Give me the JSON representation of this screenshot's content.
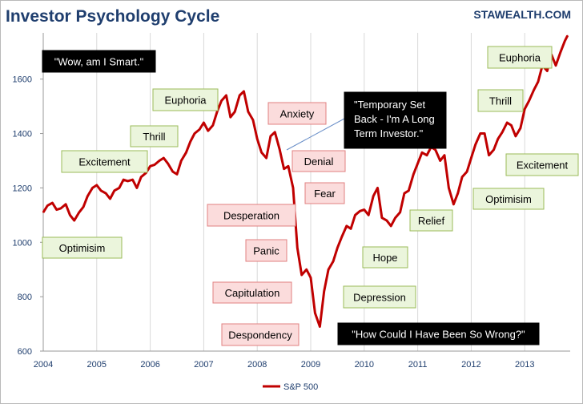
{
  "chart_data": {
    "type": "line",
    "title": "Investor Psychology Cycle",
    "watermark": "STAWEALTH.COM",
    "xlabel": "",
    "ylabel": "",
    "xlim": [
      2004.0,
      2013.85
    ],
    "ylim": [
      600,
      1770
    ],
    "x_ticks": [
      2004,
      2005,
      2006,
      2007,
      2008,
      2009,
      2010,
      2011,
      2012,
      2013
    ],
    "y_ticks": [
      600,
      800,
      1000,
      1200,
      1400,
      1600
    ],
    "grid": "vertical",
    "legend_position": "bottom",
    "series": [
      {
        "name": "S&P 500",
        "color": "#c00000",
        "points": [
          [
            2004.0,
            1110
          ],
          [
            2004.08,
            1135
          ],
          [
            2004.17,
            1145
          ],
          [
            2004.25,
            1120
          ],
          [
            2004.33,
            1125
          ],
          [
            2004.42,
            1140
          ],
          [
            2004.5,
            1100
          ],
          [
            2004.58,
            1080
          ],
          [
            2004.67,
            1110
          ],
          [
            2004.75,
            1130
          ],
          [
            2004.83,
            1170
          ],
          [
            2004.92,
            1200
          ],
          [
            2005.0,
            1210
          ],
          [
            2005.08,
            1190
          ],
          [
            2005.17,
            1180
          ],
          [
            2005.25,
            1160
          ],
          [
            2005.33,
            1190
          ],
          [
            2005.42,
            1200
          ],
          [
            2005.5,
            1230
          ],
          [
            2005.58,
            1225
          ],
          [
            2005.67,
            1230
          ],
          [
            2005.75,
            1200
          ],
          [
            2005.83,
            1240
          ],
          [
            2005.92,
            1255
          ],
          [
            2006.0,
            1280
          ],
          [
            2006.08,
            1285
          ],
          [
            2006.17,
            1300
          ],
          [
            2006.25,
            1310
          ],
          [
            2006.33,
            1290
          ],
          [
            2006.42,
            1260
          ],
          [
            2006.5,
            1250
          ],
          [
            2006.58,
            1300
          ],
          [
            2006.67,
            1330
          ],
          [
            2006.75,
            1370
          ],
          [
            2006.83,
            1400
          ],
          [
            2006.92,
            1415
          ],
          [
            2007.0,
            1440
          ],
          [
            2007.08,
            1410
          ],
          [
            2007.17,
            1430
          ],
          [
            2007.25,
            1480
          ],
          [
            2007.33,
            1520
          ],
          [
            2007.42,
            1540
          ],
          [
            2007.5,
            1460
          ],
          [
            2007.58,
            1480
          ],
          [
            2007.67,
            1540
          ],
          [
            2007.75,
            1555
          ],
          [
            2007.83,
            1480
          ],
          [
            2007.92,
            1450
          ],
          [
            2008.0,
            1380
          ],
          [
            2008.08,
            1330
          ],
          [
            2008.17,
            1310
          ],
          [
            2008.25,
            1390
          ],
          [
            2008.33,
            1405
          ],
          [
            2008.42,
            1340
          ],
          [
            2008.5,
            1270
          ],
          [
            2008.58,
            1280
          ],
          [
            2008.67,
            1200
          ],
          [
            2008.75,
            980
          ],
          [
            2008.83,
            880
          ],
          [
            2008.92,
            900
          ],
          [
            2009.0,
            870
          ],
          [
            2009.08,
            740
          ],
          [
            2009.17,
            690
          ],
          [
            2009.25,
            820
          ],
          [
            2009.33,
            900
          ],
          [
            2009.42,
            930
          ],
          [
            2009.5,
            980
          ],
          [
            2009.58,
            1020
          ],
          [
            2009.67,
            1060
          ],
          [
            2009.75,
            1050
          ],
          [
            2009.83,
            1100
          ],
          [
            2009.92,
            1115
          ],
          [
            2010.0,
            1120
          ],
          [
            2010.08,
            1100
          ],
          [
            2010.17,
            1170
          ],
          [
            2010.25,
            1200
          ],
          [
            2010.33,
            1090
          ],
          [
            2010.42,
            1080
          ],
          [
            2010.5,
            1060
          ],
          [
            2010.58,
            1090
          ],
          [
            2010.67,
            1110
          ],
          [
            2010.75,
            1180
          ],
          [
            2010.83,
            1190
          ],
          [
            2010.92,
            1250
          ],
          [
            2011.0,
            1290
          ],
          [
            2011.08,
            1330
          ],
          [
            2011.17,
            1320
          ],
          [
            2011.25,
            1350
          ],
          [
            2011.33,
            1340
          ],
          [
            2011.42,
            1300
          ],
          [
            2011.5,
            1320
          ],
          [
            2011.58,
            1200
          ],
          [
            2011.67,
            1140
          ],
          [
            2011.75,
            1180
          ],
          [
            2011.83,
            1240
          ],
          [
            2011.92,
            1260
          ],
          [
            2012.0,
            1310
          ],
          [
            2012.08,
            1360
          ],
          [
            2012.17,
            1400
          ],
          [
            2012.25,
            1400
          ],
          [
            2012.33,
            1320
          ],
          [
            2012.42,
            1340
          ],
          [
            2012.5,
            1380
          ],
          [
            2012.58,
            1405
          ],
          [
            2012.67,
            1440
          ],
          [
            2012.75,
            1430
          ],
          [
            2012.83,
            1390
          ],
          [
            2012.92,
            1420
          ],
          [
            2013.0,
            1490
          ],
          [
            2013.08,
            1520
          ],
          [
            2013.17,
            1560
          ],
          [
            2013.25,
            1590
          ],
          [
            2013.33,
            1650
          ],
          [
            2013.42,
            1630
          ],
          [
            2013.5,
            1690
          ],
          [
            2013.58,
            1650
          ],
          [
            2013.67,
            1700
          ],
          [
            2013.75,
            1740
          ],
          [
            2013.8,
            1760
          ]
        ]
      }
    ],
    "annotations": [
      {
        "text": "\"Wow, am I Smart.\"",
        "style": "black"
      },
      {
        "text": "Euphoria",
        "style": "green"
      },
      {
        "text": "Thrill",
        "style": "green"
      },
      {
        "text": "Excitement",
        "style": "green"
      },
      {
        "text": "Optimisim",
        "style": "green"
      },
      {
        "text": "Anxiety",
        "style": "red"
      },
      {
        "text": "\"Temporary Set Back - I'm A Long Term Investor.\"",
        "style": "black"
      },
      {
        "text": "Denial",
        "style": "red"
      },
      {
        "text": "Fear",
        "style": "red"
      },
      {
        "text": "Desperation",
        "style": "red"
      },
      {
        "text": "Panic",
        "style": "red"
      },
      {
        "text": "Capitulation",
        "style": "red"
      },
      {
        "text": "Despondency",
        "style": "red"
      },
      {
        "text": "Depression",
        "style": "green"
      },
      {
        "text": "Hope",
        "style": "green"
      },
      {
        "text": "Relief",
        "style": "green"
      },
      {
        "text": "\"How Could I Have Been So Wrong?\"",
        "style": "black"
      },
      {
        "text": "Optimisim",
        "style": "green"
      },
      {
        "text": "Excitement",
        "style": "green"
      },
      {
        "text": "Thrill",
        "style": "green"
      },
      {
        "text": "Euphoria",
        "style": "green"
      }
    ],
    "annotation_colors": {
      "green_fill": "#ebf5dc",
      "green_border": "#9bbb59",
      "red_fill": "#fbdcdc",
      "red_border": "#e08080",
      "black_fill": "#000000",
      "title_color": "#1f3e6e",
      "watermark_color": "#1f3e6e",
      "axis_label_color": "#1f3e6e"
    }
  }
}
